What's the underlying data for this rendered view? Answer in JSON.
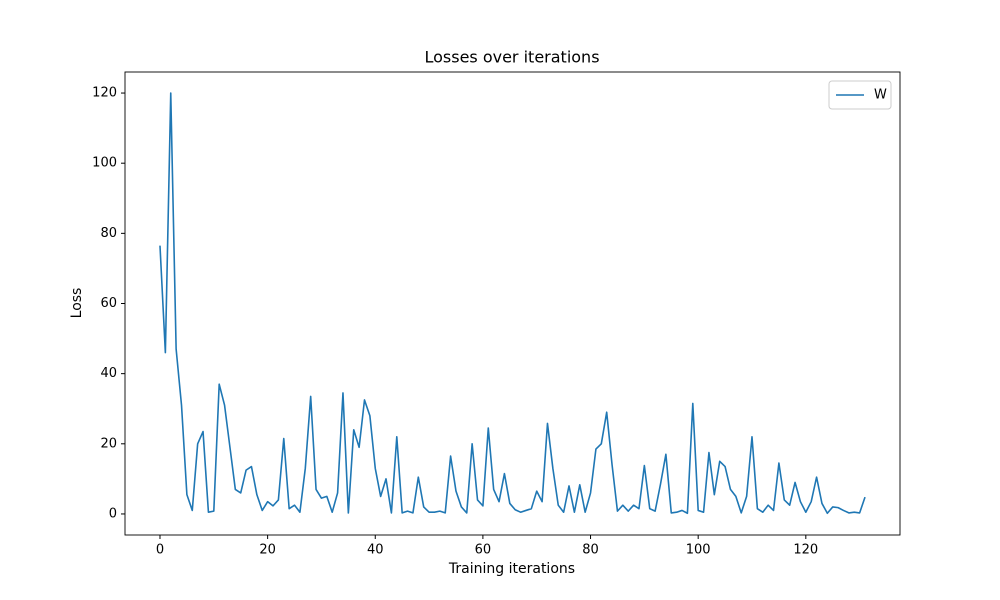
{
  "chart_data": {
    "type": "line",
    "title": "Losses over iterations",
    "x_label": "Training iterations",
    "y_label": "Loss",
    "x": [
      0,
      1,
      2,
      3,
      4,
      5,
      6,
      7,
      8,
      9,
      10,
      11,
      12,
      13,
      14,
      15,
      16,
      17,
      18,
      19,
      20,
      21,
      22,
      23,
      24,
      25,
      26,
      27,
      28,
      29,
      30,
      31,
      32,
      33,
      34,
      35,
      36,
      37,
      38,
      39,
      40,
      41,
      42,
      43,
      44,
      45,
      46,
      47,
      48,
      49,
      50,
      51,
      52,
      53,
      54,
      55,
      56,
      57,
      58,
      59,
      60,
      61,
      62,
      63,
      64,
      65,
      66,
      67,
      68,
      69,
      70,
      71,
      72,
      73,
      74,
      75,
      76,
      77,
      78,
      79,
      80,
      81,
      82,
      83,
      84,
      85,
      86,
      87,
      88,
      89,
      90,
      91,
      92,
      93,
      94,
      95,
      96,
      97,
      98,
      99,
      100,
      101,
      102,
      103,
      104,
      105,
      106,
      107,
      108,
      109,
      110,
      111,
      112,
      113,
      114,
      115,
      116,
      117,
      118,
      119,
      120,
      121,
      122,
      123,
      124,
      125,
      126,
      127,
      128,
      129,
      130,
      131
    ],
    "series": [
      {
        "name": "W",
        "color": "#1f77b4",
        "values": [
          76.5,
          46,
          120,
          47,
          31,
          5.5,
          1,
          20,
          23.5,
          0.5,
          0.8,
          37,
          31,
          19,
          7,
          6,
          12.5,
          13.5,
          5.5,
          1,
          3.5,
          2.3,
          4,
          21.5,
          1.5,
          2.5,
          0.5,
          13,
          33.5,
          7,
          4.5,
          5,
          0.5,
          6,
          34.5,
          0.3,
          24,
          19,
          32.5,
          28,
          13,
          5,
          10,
          0.3,
          22,
          0.3,
          0.8,
          0.3,
          10.5,
          2,
          0.5,
          0.5,
          0.8,
          0.3,
          16.5,
          6.5,
          2,
          0.3,
          20,
          4,
          2.3,
          24.5,
          7,
          3.5,
          11.5,
          3,
          1.2,
          0.5,
          1,
          1.5,
          6.5,
          3.5,
          25.8,
          13,
          2.5,
          0.5,
          8,
          0.5,
          8.3,
          0.5,
          6,
          18.5,
          20,
          29,
          14,
          0.8,
          2.5,
          0.8,
          2.5,
          1.5,
          13.8,
          1.5,
          0.8,
          8.5,
          17,
          0.3,
          0.5,
          1,
          0.2,
          31.5,
          1,
          0.5,
          17.5,
          5.5,
          15,
          13.5,
          7,
          5,
          0.3,
          5,
          22,
          1.5,
          0.5,
          2.5,
          1,
          14.5,
          4,
          2.5,
          9,
          3.5,
          0.5,
          3.5,
          10.5,
          3,
          0.2,
          2,
          1.8,
          1,
          0.3,
          0.5,
          0.3,
          4.8
        ]
      }
    ],
    "xlim": [
      -6.5,
      137.5
    ],
    "ylim": [
      -6,
      126
    ],
    "xticks": [
      0,
      20,
      40,
      60,
      80,
      100,
      120
    ],
    "yticks": [
      0,
      20,
      40,
      60,
      80,
      100,
      120
    ],
    "legend": "upper right"
  }
}
